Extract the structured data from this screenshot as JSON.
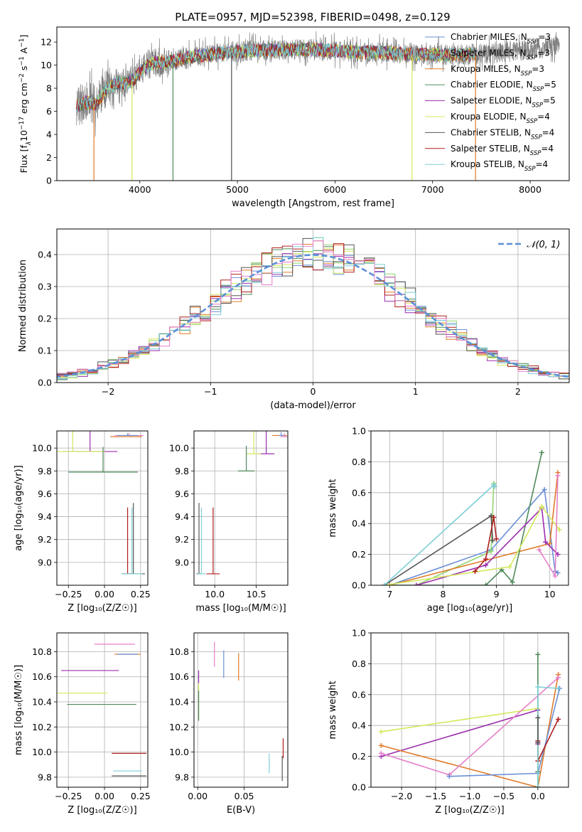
{
  "figure": {
    "title": "PLATE=0957, MJD=52398, FIBERID=0498, z=0.129"
  },
  "colors": {
    "Chabrier MILES": "#6a8fd6",
    "Salpeter MILES": "#8fd56d",
    "Kroupa MILES": "#e07b2a",
    "Chabrier ELODIE": "#4f8a5b",
    "Salpeter ELODIE": "#9b2fae",
    "Kroupa ELODIE": "#d4e85c",
    "Chabrier STELIB": "#555555",
    "Salpeter STELIB": "#b01e1e",
    "Kroupa STELIB": "#7ecfd6",
    "Pink": "#e57fc9",
    "normal": "#5b8fd6"
  },
  "chart_data": [
    {
      "id": "spectrum",
      "type": "line",
      "xlabel": "wavelength [Angstrom, rest frame]",
      "ylabel": "Flux [f$_\\lambda$10$^{-17}$ erg cm$^{-2}$ s$^{-1}$ A$^{-1}$]",
      "ylabel_parts": [
        "Flux [f",
        "λ",
        "10",
        "−17",
        " erg cm",
        "−2",
        " s",
        "−1",
        " A",
        "−1",
        "]"
      ],
      "xlim": [
        3150,
        8400
      ],
      "ylim": [
        0,
        13.3
      ],
      "xticks": [
        4000,
        5000,
        6000,
        7000,
        8000
      ],
      "yticks": [
        0,
        2,
        4,
        6,
        8,
        10,
        12
      ],
      "legend_position": "top-right",
      "legend": [
        {
          "label": "Chabrier MILES, N",
          "sub": "SSP",
          "suffix": "=3",
          "color_key": "Chabrier MILES"
        },
        {
          "label": "Salpeter MILES, N",
          "sub": "SSP",
          "suffix": "=3",
          "color_key": "Salpeter MILES"
        },
        {
          "label": "Kroupa MILES, N",
          "sub": "SSP",
          "suffix": "=3",
          "color_key": "Kroupa MILES"
        },
        {
          "label": "Chabrier ELODIE, N",
          "sub": "SSP",
          "suffix": "=5",
          "color_key": "Chabrier ELODIE"
        },
        {
          "label": "Salpeter ELODIE, N",
          "sub": "SSP",
          "suffix": "=5",
          "color_key": "Salpeter ELODIE"
        },
        {
          "label": "Kroupa ELODIE, N",
          "sub": "SSP",
          "suffix": "=4",
          "color_key": "Kroupa ELODIE"
        },
        {
          "label": "Chabrier STELIB, N",
          "sub": "SSP",
          "suffix": "=4",
          "color_key": "Chabrier STELIB"
        },
        {
          "label": "Salpeter STELIB, N",
          "sub": "SSP",
          "suffix": "=4",
          "color_key": "Salpeter STELIB"
        },
        {
          "label": "Kroupa STELIB, N",
          "sub": "SSP",
          "suffix": "=4",
          "color_key": "Kroupa STELIB"
        }
      ],
      "data_envelope": [
        [
          3350,
          6.4
        ],
        [
          3450,
          6.8
        ],
        [
          3550,
          6.6
        ],
        [
          3650,
          7.8
        ],
        [
          3750,
          8.4
        ],
        [
          3850,
          8.4
        ],
        [
          3950,
          8.8
        ],
        [
          4050,
          9.8
        ],
        [
          4150,
          10.2
        ],
        [
          4300,
          10.3
        ],
        [
          4500,
          10.7
        ],
        [
          4700,
          10.9
        ],
        [
          4900,
          11.1
        ],
        [
          5100,
          11.2
        ],
        [
          5300,
          11.3
        ],
        [
          5500,
          11.3
        ],
        [
          5700,
          11.4
        ],
        [
          5900,
          11.3
        ],
        [
          6100,
          11.2
        ],
        [
          6300,
          11.1
        ],
        [
          6500,
          11.1
        ],
        [
          6700,
          11.0
        ],
        [
          6900,
          10.9
        ],
        [
          7100,
          10.9
        ],
        [
          7300,
          10.9
        ],
        [
          7450,
          11.0
        ],
        [
          7600,
          11.0
        ],
        [
          7800,
          11.2
        ],
        [
          8000,
          11.3
        ],
        [
          8200,
          11.6
        ],
        [
          8300,
          11.8
        ]
      ],
      "dropouts": [
        [
          3530,
          "Kroupa MILES"
        ],
        [
          3920,
          "Kroupa ELODIE"
        ],
        [
          4340,
          "Chabrier ELODIE"
        ],
        [
          4940,
          "Chabrier STELIB"
        ],
        [
          6790,
          "Kroupa ELODIE"
        ],
        [
          7440,
          "Kroupa MILES"
        ]
      ]
    },
    {
      "id": "residuals",
      "type": "area",
      "xlabel": "(data-model)/error",
      "ylabel": "Normed distribution",
      "xlim": [
        -2.5,
        2.5
      ],
      "ylim": [
        0,
        0.48
      ],
      "xticks": [
        -2,
        -1,
        0,
        1,
        2
      ],
      "yticks": [
        0.0,
        0.1,
        0.2,
        0.3,
        0.4
      ],
      "grid": true,
      "bin_width": 0.1,
      "legend_position": "top-right",
      "legend": [
        {
          "label": "𝒩(0, 1)",
          "color_key": "normal"
        }
      ],
      "normal_pdf": {
        "mu": 0,
        "sigma": 1
      }
    },
    {
      "id": "age_Z",
      "type": "scatter",
      "xlabel": "Z [log₁₀(Z/Z☉)]",
      "ylabel": "age  [log₁₀(age/yr)]",
      "xlim": [
        -0.33,
        0.3
      ],
      "ylim": [
        8.8,
        10.15
      ],
      "xticks": [
        -0.25,
        0.0,
        0.25
      ],
      "yticks": [
        9.0,
        9.2,
        9.4,
        9.6,
        9.8,
        10.0
      ],
      "points": [
        {
          "c": "Kroupa MILES",
          "x": 0.15,
          "y": 10.1,
          "ex": 0.11,
          "ey": 0.0
        },
        {
          "c": "Pink",
          "x": 0.17,
          "y": 10.11,
          "ex": 0.1,
          "ey": 0.02
        },
        {
          "c": "Chabrier MILES",
          "x": 0.16,
          "y": 10.11,
          "ex": 0.07,
          "ey": 0.02
        },
        {
          "c": "Salpeter ELODIE",
          "x": -0.1,
          "y": 9.97,
          "ex": 0.19,
          "ey": 0.25
        },
        {
          "c": "Kroupa ELODIE",
          "x": -0.22,
          "y": 9.97,
          "ex": 0.22,
          "ey": 0.3
        },
        {
          "c": "Chabrier ELODIE",
          "x": -0.01,
          "y": 9.79,
          "ex": 0.24,
          "ey": 0.22
        },
        {
          "c": "Salpeter STELIB",
          "x": 0.16,
          "y": 8.9,
          "ex": 0.04,
          "ey": 0.58
        },
        {
          "c": "Chabrier STELIB",
          "x": 0.2,
          "y": 8.9,
          "ex": 0.08,
          "ey": 0.62
        },
        {
          "c": "Kroupa STELIB",
          "x": 0.19,
          "y": 8.9,
          "ex": 0.07,
          "ey": 0.58
        }
      ]
    },
    {
      "id": "age_mass",
      "type": "scatter",
      "xlabel": "mass [log₁₀(M/M☉)]",
      "ylabel": "",
      "xlim": [
        9.75,
        10.88
      ],
      "ylim": [
        8.8,
        10.15
      ],
      "xticks": [
        10.0,
        10.5
      ],
      "yticks": [
        9.0,
        9.2,
        9.4,
        9.6,
        9.8,
        10.0
      ],
      "points": [
        {
          "c": "Kroupa MILES",
          "x": 10.78,
          "y": 10.11,
          "ex": 0.09,
          "ey": 0.0
        },
        {
          "c": "Pink",
          "x": 10.84,
          "y": 10.1,
          "ex": 0.05,
          "ey": 0.03
        },
        {
          "c": "Chabrier MILES",
          "x": 10.8,
          "y": 10.11,
          "ex": 0.03,
          "ey": 0.03
        },
        {
          "c": "Salpeter ELODIE",
          "x": 10.62,
          "y": 9.95,
          "ex": 0.1,
          "ey": 0.25
        },
        {
          "c": "Kroupa ELODIE",
          "x": 10.47,
          "y": 9.95,
          "ex": 0.09,
          "ey": 0.3
        },
        {
          "c": "Chabrier ELODIE",
          "x": 10.38,
          "y": 9.8,
          "ex": 0.1,
          "ey": 0.22
        },
        {
          "c": "Salpeter STELIB",
          "x": 9.98,
          "y": 8.9,
          "ex": 0.08,
          "ey": 0.58
        },
        {
          "c": "Chabrier STELIB",
          "x": 9.81,
          "y": 8.9,
          "ex": 0.03,
          "ey": 0.62
        },
        {
          "c": "Kroupa STELIB",
          "x": 9.84,
          "y": 8.9,
          "ex": 0.05,
          "ey": 0.58
        }
      ]
    },
    {
      "id": "massweight_age",
      "type": "line",
      "xlabel": "age  [log₁₀(age/yr)]",
      "ylabel": "mass weight",
      "xlim": [
        6.65,
        10.35
      ],
      "ylim": [
        0,
        1.0
      ],
      "xticks": [
        7,
        8,
        9,
        10
      ],
      "yticks": [
        0.0,
        0.2,
        0.4,
        0.6,
        0.8,
        1.0
      ],
      "series": [
        {
          "c": "Chabrier MILES",
          "x": [
            7.0,
            8.9,
            9.9,
            10.1,
            10.15
          ],
          "y": [
            0.0,
            0.23,
            0.62,
            0.09,
            0.08
          ]
        },
        {
          "c": "Salpeter MILES",
          "x": [
            7.5,
            8.9,
            8.95
          ],
          "y": [
            0.0,
            0.22,
            0.66
          ]
        },
        {
          "c": "Kroupa MILES",
          "x": [
            7.0,
            10.0,
            10.15
          ],
          "y": [
            0.0,
            0.27,
            0.73
          ]
        },
        {
          "c": "Chabrier ELODIE",
          "x": [
            6.9,
            8.8,
            9.1,
            9.3,
            9.85
          ],
          "y": [
            0.0,
            0.0,
            0.1,
            0.02,
            0.86
          ]
        },
        {
          "c": "Salpeter ELODIE",
          "x": [
            7.5,
            8.8,
            9.85,
            9.92,
            10.15
          ],
          "y": [
            0.0,
            0.13,
            0.5,
            0.28,
            0.2
          ]
        },
        {
          "c": "Kroupa ELODIE",
          "x": [
            6.9,
            9.25,
            9.85,
            10.18
          ],
          "y": [
            0.0,
            0.12,
            0.51,
            0.36
          ]
        },
        {
          "c": "Chabrier STELIB",
          "x": [
            6.9,
            8.9,
            8.93
          ],
          "y": [
            0.0,
            0.45,
            0.29
          ]
        },
        {
          "c": "Salpeter STELIB",
          "x": [
            8.6,
            8.8,
            8.95,
            9.0
          ],
          "y": [
            0.09,
            0.17,
            0.44,
            0.3
          ]
        },
        {
          "c": "Kroupa STELIB",
          "x": [
            6.9,
            8.95,
            8.97
          ],
          "y": [
            0.0,
            0.65,
            0.64
          ]
        },
        {
          "c": "Pink",
          "x": [
            9.8,
            10.1,
            10.15
          ],
          "y": [
            0.23,
            0.06,
            0.71
          ]
        }
      ]
    },
    {
      "id": "mass_Z",
      "type": "scatter",
      "xlabel": "Z [log₁₀(Z/Z☉)]",
      "ylabel": "mass [log₁₀(M/M☉)]",
      "xlim": [
        -0.33,
        0.3
      ],
      "ylim": [
        9.72,
        10.95
      ],
      "xticks": [
        -0.25,
        0.0,
        0.25
      ],
      "yticks": [
        9.8,
        10.0,
        10.2,
        10.4,
        10.6,
        10.8
      ],
      "points": [
        {
          "c": "Pink",
          "x": 0.07,
          "y": 10.86,
          "ex": 0.14,
          "ey": 0.0
        },
        {
          "c": "Kroupa MILES",
          "x": 0.16,
          "y": 10.78,
          "ex": 0.09,
          "ey": 0.0
        },
        {
          "c": "Chabrier MILES",
          "x": 0.16,
          "y": 10.78,
          "ex": 0.07,
          "ey": 0.0
        },
        {
          "c": "Salpeter ELODIE",
          "x": -0.1,
          "y": 10.65,
          "ex": 0.2,
          "ey": 0.0
        },
        {
          "c": "Kroupa ELODIE",
          "x": -0.22,
          "y": 10.47,
          "ex": 0.24,
          "ey": 0.0
        },
        {
          "c": "Chabrier ELODIE",
          "x": -0.02,
          "y": 10.38,
          "ex": 0.24,
          "ey": 0.0
        },
        {
          "c": "Salpeter STELIB",
          "x": 0.17,
          "y": 9.99,
          "ex": 0.12,
          "ey": 0.0
        },
        {
          "c": "Kroupa STELIB",
          "x": 0.16,
          "y": 9.85,
          "ex": 0.1,
          "ey": 0.0
        },
        {
          "c": "Chabrier STELIB",
          "x": 0.17,
          "y": 9.81,
          "ex": 0.12,
          "ey": 0.0
        }
      ]
    },
    {
      "id": "mass_ebv",
      "type": "scatter",
      "xlabel": "E(B-V)",
      "ylabel": "",
      "xlim": [
        -0.004,
        0.097
      ],
      "ylim": [
        9.72,
        10.95
      ],
      "xticks": [
        0.0,
        0.05
      ],
      "yticks": [
        9.8,
        10.0,
        10.2,
        10.4,
        10.6,
        10.8
      ],
      "points": [
        {
          "c": "Pink",
          "x": 0.018,
          "y": 10.78,
          "ex": 0.0,
          "ey": 0.1
        },
        {
          "c": "Chabrier MILES",
          "x": 0.028,
          "y": 10.7,
          "ex": 0.0,
          "ey": 0.11
        },
        {
          "c": "Kroupa MILES",
          "x": 0.044,
          "y": 10.68,
          "ex": 0.0,
          "ey": 0.11
        },
        {
          "c": "Salpeter ELODIE",
          "x": 0.001,
          "y": 10.6,
          "ex": 0.0,
          "ey": 0.05
        },
        {
          "c": "Kroupa ELODIE",
          "x": 0.001,
          "y": 10.4,
          "ex": 0.0,
          "ey": 0.15
        },
        {
          "c": "Chabrier ELODIE",
          "x": 0.001,
          "y": 10.37,
          "ex": 0.0,
          "ey": 0.12
        },
        {
          "c": "Kroupa STELIB",
          "x": 0.077,
          "y": 9.91,
          "ex": 0.0,
          "ey": 0.08
        },
        {
          "c": "Salpeter STELIB",
          "x": 0.092,
          "y": 10.03,
          "ex": 0.0,
          "ey": 0.08
        },
        {
          "c": "Chabrier STELIB",
          "x": 0.091,
          "y": 9.87,
          "ex": 0.0,
          "ey": 0.1
        }
      ]
    },
    {
      "id": "massweight_Z",
      "type": "line",
      "xlabel": "Z [log₁₀(Z/Z☉)]",
      "ylabel": "mass weight",
      "xlim": [
        -2.45,
        0.45
      ],
      "ylim": [
        0,
        1.0
      ],
      "xticks": [
        -2.0,
        -1.5,
        -1.0,
        -0.5,
        0.0
      ],
      "yticks": [
        0.0,
        0.2,
        0.4,
        0.6,
        0.8,
        1.0
      ],
      "series": [
        {
          "c": "Kroupa ELODIE",
          "x": [
            -2.3,
            0.0,
            0.0
          ],
          "y": [
            0.36,
            0.51,
            0.0
          ]
        },
        {
          "c": "Salpeter ELODIE",
          "x": [
            -2.3,
            0.0,
            0.0
          ],
          "y": [
            0.2,
            0.5,
            0.28
          ]
        },
        {
          "c": "Kroupa MILES",
          "x": [
            -2.3,
            0.0,
            0.3
          ],
          "y": [
            0.27,
            0.0,
            0.73
          ]
        },
        {
          "c": "Pink",
          "x": [
            -2.3,
            -1.3,
            0.3
          ],
          "y": [
            0.22,
            0.08,
            0.71
          ]
        },
        {
          "c": "Chabrier MILES",
          "x": [
            -1.3,
            0.0,
            0.32
          ],
          "y": [
            0.07,
            0.09,
            0.64
          ]
        },
        {
          "c": "Chabrier ELODIE",
          "x": [
            0.0,
            0.0,
            0.0
          ],
          "y": [
            0.0,
            0.86,
            0.1
          ]
        },
        {
          "c": "Salpeter STELIB",
          "x": [
            0.0,
            0.0,
            0.3
          ],
          "y": [
            0.3,
            0.17,
            0.44
          ]
        },
        {
          "c": "Kroupa STELIB",
          "x": [
            0.0,
            0.0,
            0.3
          ],
          "y": [
            0.0,
            0.65,
            0.64
          ]
        },
        {
          "c": "Chabrier STELIB",
          "x": [
            0.0,
            0.0
          ],
          "y": [
            0.29,
            0.45
          ]
        }
      ]
    }
  ]
}
